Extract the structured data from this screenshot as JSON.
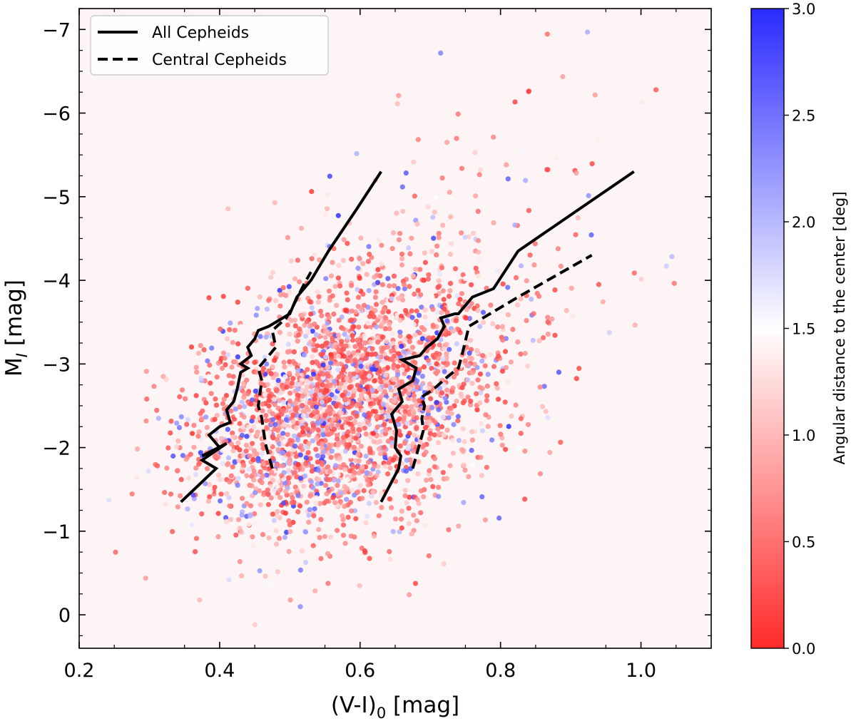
{
  "chart_data": {
    "type": "scatter",
    "xlabel": "(V-I)",
    "xlabel_sub": "0",
    "xlabel_unit": " [mag]",
    "ylabel": "M",
    "ylabel_sub": "I",
    "ylabel_unit": " [mag]",
    "xlim": [
      0.2,
      1.1
    ],
    "ylim": [
      0.4,
      -7.25
    ],
    "y_inverted": true,
    "x_ticks": [
      0.2,
      0.4,
      0.6,
      0.8,
      1.0
    ],
    "x_tick_labels": [
      "0.2",
      "0.4",
      "0.6",
      "0.8",
      "1.0"
    ],
    "y_ticks": [
      0,
      -1,
      -2,
      -3,
      -4,
      -5,
      -6,
      -7
    ],
    "y_tick_labels": [
      "0",
      "−1",
      "−2",
      "−3",
      "−4",
      "−5",
      "−6",
      "−7"
    ],
    "grid": false,
    "legend_placement": "top-left",
    "legend": [
      {
        "label": "All Cepheids",
        "linestyle": "solid"
      },
      {
        "label": "Central Cepheids",
        "linestyle": "dashed"
      }
    ],
    "colorbar": {
      "label": "Angular distance to the center [deg]",
      "range": [
        0.0,
        3.0
      ],
      "ticks": [
        0.0,
        0.5,
        1.0,
        1.5,
        2.0,
        2.5,
        3.0
      ],
      "tick_labels": [
        "0.0",
        "0.5",
        "1.0",
        "1.5",
        "2.0",
        "2.5",
        "3.0"
      ],
      "colormap": "bwr_r",
      "colors": {
        "low": "#ff2a2a",
        "mid": "#ffffff",
        "high": "#2a2aff"
      }
    },
    "scatter_summary": {
      "approx_points": 3000,
      "x_center": 0.58,
      "y_center": -2.5,
      "x_spread": 0.1,
      "y_spread": 0.75,
      "value_field": "angular_distance_deg"
    },
    "series": [
      {
        "name": "All Cepheids",
        "linestyle": "solid",
        "color": "#000000",
        "segments": [
          {
            "edge": "blue",
            "x": [
              0.345,
              0.395,
              0.375,
              0.41,
              0.375,
              0.4,
              0.385,
              0.4,
              0.415,
              0.41,
              0.42,
              0.425,
              0.43,
              0.44,
              0.43,
              0.445,
              0.44,
              0.45,
              0.455,
              0.47,
              0.5,
              0.51,
              0.53,
              0.555,
              0.595,
              0.63
            ],
            "y": [
              -1.35,
              -1.75,
              -1.85,
              -2.05,
              -1.9,
              -2.0,
              -2.15,
              -2.25,
              -2.3,
              -2.45,
              -2.55,
              -2.7,
              -2.9,
              -2.95,
              -3.0,
              -3.1,
              -3.2,
              -3.3,
              -3.4,
              -3.45,
              -3.6,
              -3.8,
              -4.0,
              -4.35,
              -4.85,
              -5.3
            ]
          },
          {
            "edge": "red",
            "x": [
              0.63,
              0.655,
              0.658,
              0.65,
              0.652,
              0.645,
              0.66,
              0.655,
              0.675,
              0.68,
              0.66,
              0.685,
              0.695,
              0.71,
              0.72,
              0.715,
              0.735,
              0.74,
              0.75,
              0.76,
              0.79,
              0.825,
              0.99
            ],
            "y": [
              -1.35,
              -1.75,
              -1.9,
              -2.0,
              -2.2,
              -2.4,
              -2.55,
              -2.7,
              -2.8,
              -2.95,
              -3.05,
              -3.1,
              -3.2,
              -3.3,
              -3.45,
              -3.55,
              -3.6,
              -3.6,
              -3.7,
              -3.8,
              -3.9,
              -4.35,
              -5.3
            ]
          }
        ]
      },
      {
        "name": "Central Cepheids",
        "linestyle": "dashed",
        "color": "#000000",
        "segments": [
          {
            "edge": "blue",
            "x": [
              0.475,
              0.465,
              0.46,
              0.455,
              0.46,
              0.455,
              0.46,
              0.48,
              0.475,
              0.495,
              0.505,
              0.52,
              0.53
            ],
            "y": [
              -1.75,
              -2.05,
              -2.35,
              -2.5,
              -2.8,
              -2.95,
              -3.0,
              -3.2,
              -3.4,
              -3.55,
              -3.7,
              -3.95,
              -4.1
            ]
          },
          {
            "edge": "red",
            "x": [
              0.675,
              0.69,
              0.688,
              0.692,
              0.687,
              0.705,
              0.725,
              0.74,
              0.745,
              0.755,
              0.825,
              0.93
            ],
            "y": [
              -1.75,
              -2.2,
              -2.35,
              -2.5,
              -2.6,
              -2.7,
              -2.85,
              -2.95,
              -3.1,
              -3.45,
              -3.8,
              -4.3
            ]
          }
        ]
      }
    ]
  }
}
